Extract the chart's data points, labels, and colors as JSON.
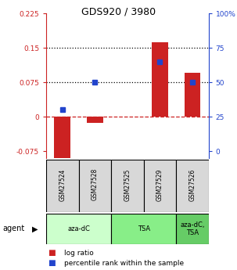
{
  "title": "GDS920 / 3980",
  "samples": [
    "GSM27524",
    "GSM27528",
    "GSM27525",
    "GSM27529",
    "GSM27526"
  ],
  "log_ratios": [
    -0.093,
    -0.013,
    0.0,
    0.163,
    0.095
  ],
  "percentile_ranks_left": [
    0.045,
    0.073,
    null,
    0.128,
    0.073
  ],
  "percentile_ranks_pct": [
    0.3,
    0.5,
    null,
    0.65,
    0.5
  ],
  "ylim_left": [
    -0.09,
    0.225
  ],
  "ylim_right": [
    0.0,
    1.0
  ],
  "yticks_left": [
    -0.075,
    0.0,
    0.075,
    0.15,
    0.225
  ],
  "yticks_right": [
    0.0,
    0.25,
    0.5,
    0.75,
    1.0
  ],
  "ytick_labels_left": [
    "-0.075",
    "0",
    "0.075",
    "0.15",
    "0.225"
  ],
  "ytick_labels_right": [
    "0",
    "25",
    "50",
    "75",
    "100%"
  ],
  "hlines": [
    0.075,
    0.15
  ],
  "bar_color": "#cc2222",
  "dot_color": "#2244cc",
  "zero_line_color": "#cc2222",
  "agent_groups": [
    {
      "label": "aza-dC",
      "span": [
        0,
        2
      ],
      "color": "#ccffcc"
    },
    {
      "label": "TSA",
      "span": [
        2,
        4
      ],
      "color": "#88ee88"
    },
    {
      "label": "aza-dC,\nTSA",
      "span": [
        4,
        5
      ],
      "color": "#66cc66"
    }
  ],
  "legend_items": [
    {
      "label": "log ratio",
      "color": "#cc2222"
    },
    {
      "label": "percentile rank within the sample",
      "color": "#2244cc"
    }
  ],
  "bar_width": 0.5
}
